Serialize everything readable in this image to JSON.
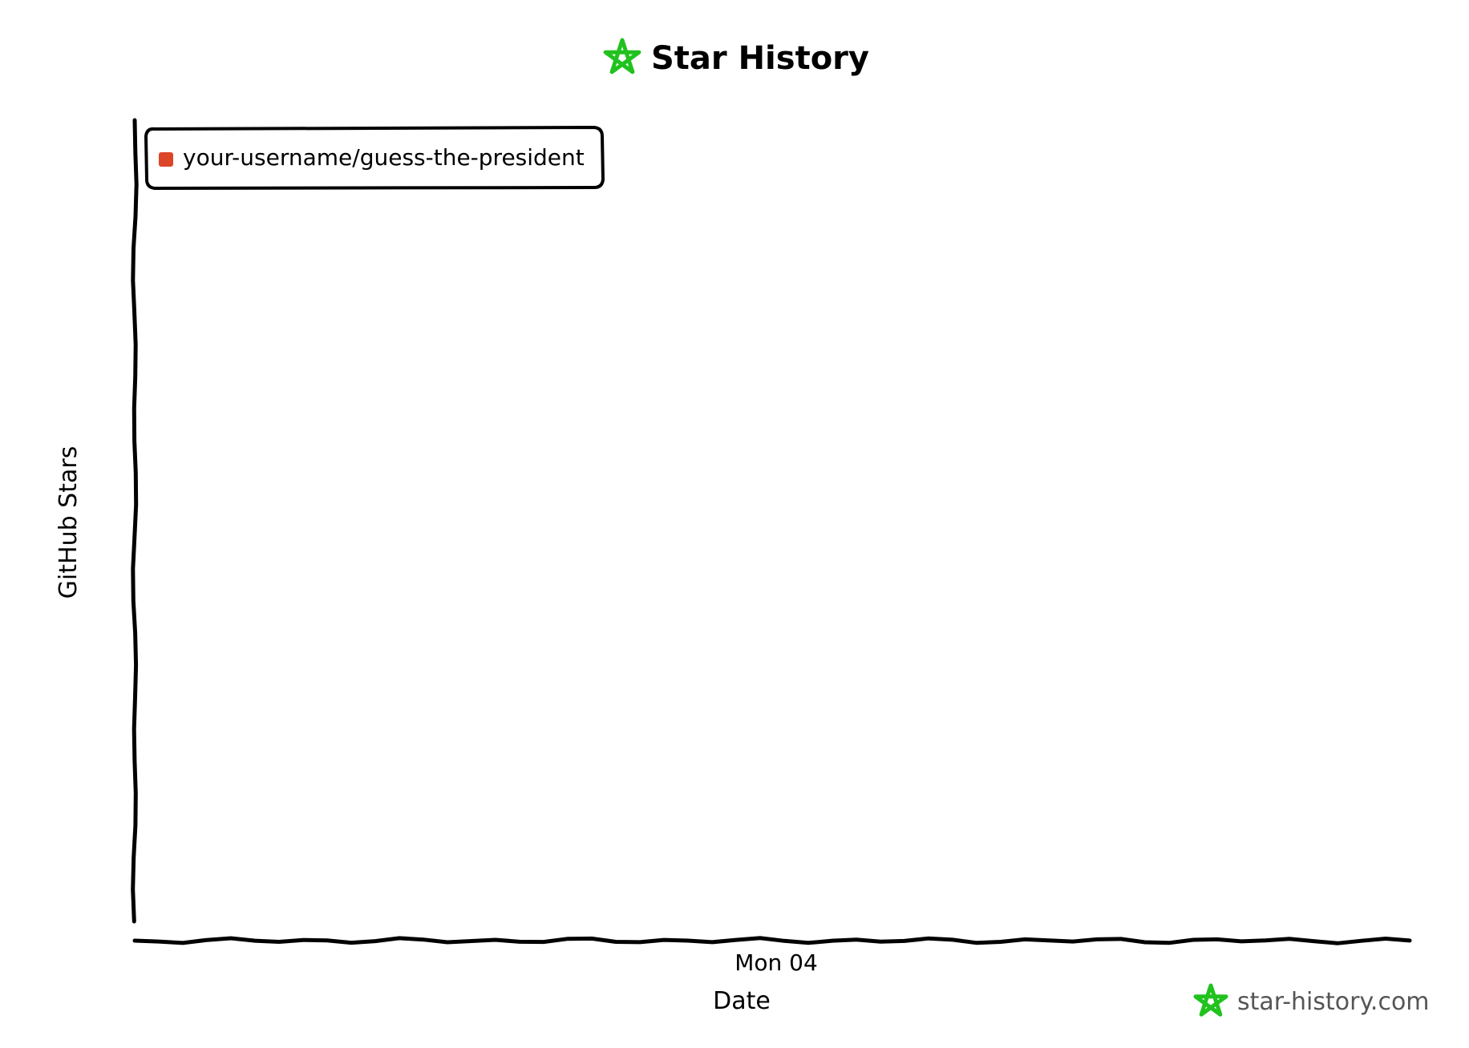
{
  "chart_data": {
    "type": "line",
    "title": "Star History",
    "xlabel": "Date",
    "ylabel": "GitHub Stars",
    "x_ticks": [
      "Mon 04"
    ],
    "series": [
      {
        "name": "your-username/guess-the-president",
        "color": "#dd4528",
        "values": []
      }
    ],
    "legend_position": "top-left",
    "grid": false
  },
  "brand": {
    "logo_icon": "star-logo-icon",
    "logo_color": "#21c21e",
    "watermark": "star-history.com"
  }
}
